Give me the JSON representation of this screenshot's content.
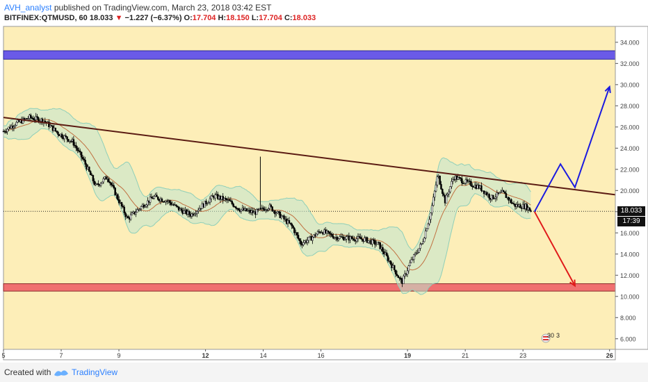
{
  "header": {
    "author": "AVH_analyst",
    "published_text": " published on TradingView.com, March 23, 2018 03:42 EST",
    "symbol": "BITFINEX:QTMUSD, 60",
    "last": "18.033",
    "change_arrow": "▼",
    "change": "−1.227 (−6.37%)",
    "o_label": "O:",
    "o_val": "17.704",
    "h_label": "H:",
    "h_val": "18.150",
    "l_label": "L:",
    "l_val": "17.704",
    "c_label": "C:",
    "c_val": "18.033"
  },
  "footer": {
    "created_with": "Created with",
    "brand": "TradingView"
  },
  "price_badge": "18.033",
  "time_badge": "17:39",
  "event_badge": "30",
  "event_badge_count": "3",
  "colors": {
    "background": "#fdeeb8",
    "up": "#ffffff",
    "down": "#000000",
    "band": "#8fcfb8",
    "mid_line": "#c07040",
    "trendline": "#5a1a12",
    "resistance_zone": "#6a5ae8",
    "support_zone": "#f07070",
    "bull_arrow": "#1a1ae0",
    "bear_arrow": "#e01a1a"
  },
  "chart_data": {
    "type": "candlestick",
    "ylim": [
      5,
      35.5
    ],
    "y_ticks": [
      "6.000",
      "8.000",
      "10.000",
      "12.000",
      "14.000",
      "16.000",
      "18.000",
      "20.000",
      "22.000",
      "24.000",
      "26.000",
      "28.000",
      "30.000",
      "32.000",
      "34.000"
    ],
    "x_ticks": [
      "5",
      "7",
      "9",
      "12",
      "14",
      "16",
      "19",
      "21",
      "23",
      "26"
    ],
    "x_tick_days": [
      5,
      7,
      9,
      12,
      14,
      16,
      19,
      21,
      23,
      26
    ],
    "xlim_days": [
      5,
      26.2
    ],
    "last_price": 18.033,
    "close_path": [
      {
        "day": 5.0,
        "price": 25.6
      },
      {
        "day": 5.4,
        "price": 26.3
      },
      {
        "day": 5.9,
        "price": 26.9
      },
      {
        "day": 6.4,
        "price": 26.6
      },
      {
        "day": 6.9,
        "price": 25.4
      },
      {
        "day": 7.4,
        "price": 24.6
      },
      {
        "day": 7.8,
        "price": 22.7
      },
      {
        "day": 8.2,
        "price": 20.4
      },
      {
        "day": 8.6,
        "price": 21.3
      },
      {
        "day": 8.9,
        "price": 19.6
      },
      {
        "day": 9.3,
        "price": 17.3
      },
      {
        "day": 9.7,
        "price": 18.3
      },
      {
        "day": 10.2,
        "price": 19.4
      },
      {
        "day": 10.7,
        "price": 19.0
      },
      {
        "day": 11.1,
        "price": 18.2
      },
      {
        "day": 11.5,
        "price": 17.7
      },
      {
        "day": 11.9,
        "price": 18.6
      },
      {
        "day": 12.3,
        "price": 19.5
      },
      {
        "day": 12.8,
        "price": 19.0
      },
      {
        "day": 13.2,
        "price": 18.2
      },
      {
        "day": 13.7,
        "price": 17.9
      },
      {
        "day": 14.2,
        "price": 18.5
      },
      {
        "day": 14.6,
        "price": 17.6
      },
      {
        "day": 15.0,
        "price": 16.6
      },
      {
        "day": 15.3,
        "price": 15.0
      },
      {
        "day": 15.6,
        "price": 15.4
      },
      {
        "day": 16.0,
        "price": 16.2
      },
      {
        "day": 16.5,
        "price": 15.6
      },
      {
        "day": 17.0,
        "price": 15.5
      },
      {
        "day": 17.5,
        "price": 15.4
      },
      {
        "day": 18.0,
        "price": 14.9
      },
      {
        "day": 18.4,
        "price": 13.2
      },
      {
        "day": 18.8,
        "price": 11.3
      },
      {
        "day": 19.1,
        "price": 13.2
      },
      {
        "day": 19.5,
        "price": 15.0
      },
      {
        "day": 19.8,
        "price": 17.8
      },
      {
        "day": 20.05,
        "price": 21.5
      },
      {
        "day": 20.3,
        "price": 19.0
      },
      {
        "day": 20.6,
        "price": 21.3
      },
      {
        "day": 21.0,
        "price": 20.8
      },
      {
        "day": 21.5,
        "price": 20.3
      },
      {
        "day": 21.9,
        "price": 19.3
      },
      {
        "day": 22.3,
        "price": 19.8
      },
      {
        "day": 22.7,
        "price": 18.6
      },
      {
        "day": 23.1,
        "price": 18.5
      },
      {
        "day": 23.3,
        "price": 18.03
      }
    ],
    "spike_high": {
      "day": 13.9,
      "price": 23.2
    },
    "trendline": [
      {
        "day": 5.0,
        "price": 26.9
      },
      {
        "day": 26.2,
        "price": 19.6
      }
    ],
    "resistance_zone": [
      32.4,
      33.2
    ],
    "support_zone": [
      10.5,
      11.2
    ],
    "bull_projection": [
      {
        "day": 23.4,
        "price": 18.0
      },
      {
        "day": 24.3,
        "price": 22.5
      },
      {
        "day": 24.8,
        "price": 20.3
      },
      {
        "day": 26.0,
        "price": 29.8
      }
    ],
    "bear_projection": [
      {
        "day": 23.4,
        "price": 18.0
      },
      {
        "day": 24.8,
        "price": 11.0
      }
    ]
  }
}
